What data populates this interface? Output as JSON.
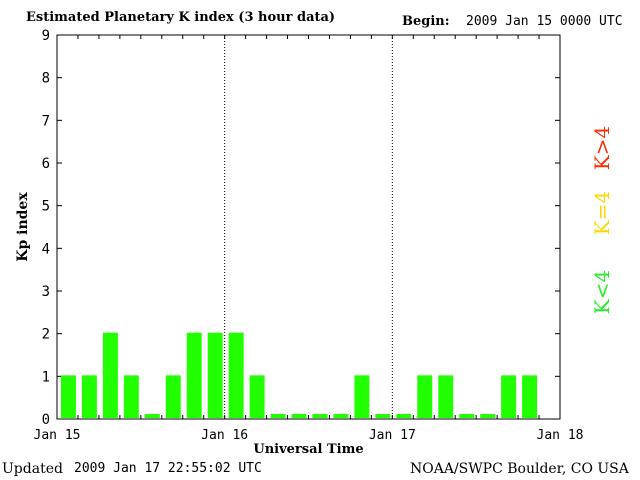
{
  "header": {
    "title": "Estimated Planetary K index (3 hour data)",
    "begin_label": "Begin:",
    "begin_value": "2009 Jan 15 0000 UTC"
  },
  "footer": {
    "updated_label": "Updated",
    "updated_value": "2009 Jan 17 22:55:02 UTC",
    "credit": "NOAA/SWPC Boulder, CO USA"
  },
  "legend": [
    {
      "label": "K>4",
      "color": "#ff2a00"
    },
    {
      "label": "K=4",
      "color": "#ffd700"
    },
    {
      "label": "K<4",
      "color": "#22ee22"
    }
  ],
  "chart_data": {
    "type": "bar",
    "title": "Estimated Planetary K index (3 hour data)",
    "xlabel": "Universal Time",
    "ylabel": "Kp index",
    "ylim": [
      0,
      9
    ],
    "yticks": [
      "0",
      "1",
      "2",
      "3",
      "4",
      "5",
      "6",
      "7",
      "8",
      "9"
    ],
    "xticks": [
      "Jan 15",
      "Jan 16",
      "Jan 17",
      "Jan 18"
    ],
    "x_interval_hours": 3,
    "bar_color": "#22ff00",
    "values": [
      1,
      1,
      2,
      1,
      0,
      1,
      2,
      2,
      2,
      1,
      0,
      0,
      0,
      0,
      1,
      0,
      0,
      1,
      1,
      0,
      0,
      1,
      1
    ]
  }
}
